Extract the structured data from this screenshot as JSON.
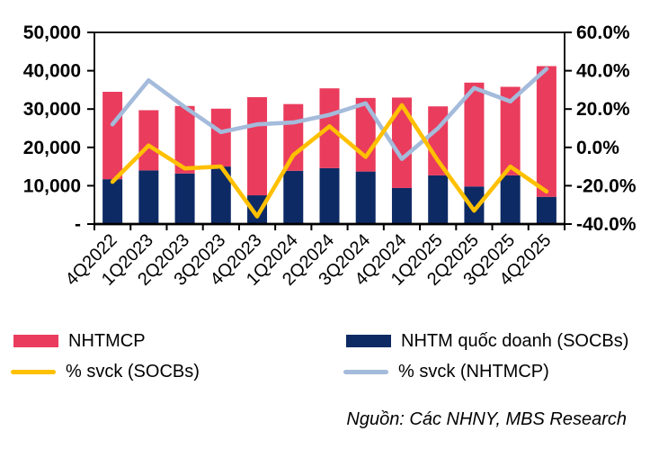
{
  "chart_data": {
    "type": "bar",
    "subtype": "stacked-bars-with-lines",
    "categories": [
      "4Q2022",
      "1Q2023",
      "2Q2023",
      "3Q2023",
      "4Q2023",
      "1Q2024",
      "2Q2024",
      "3Q2024",
      "4Q2024",
      "1Q2025",
      "2Q2025",
      "3Q2025",
      "4Q2025"
    ],
    "bar_series": [
      {
        "name": "NHTM quốc doanh (SOCBs)",
        "color": "#0D2A64",
        "axis": "left",
        "values": [
          11700,
          14000,
          13200,
          15000,
          7500,
          13900,
          14600,
          13700,
          9400,
          12700,
          9800,
          12700,
          7100
        ]
      },
      {
        "name": "NHTMCP",
        "color": "#EA3C5D",
        "axis": "left",
        "values": [
          22800,
          15700,
          17600,
          15100,
          25600,
          17400,
          20800,
          19200,
          23600,
          18000,
          27100,
          23100,
          34100
        ]
      }
    ],
    "bar_totals": [
      34500,
      29700,
      30800,
      30100,
      33100,
      31300,
      35400,
      32900,
      33000,
      30700,
      36900,
      35800,
      41200
    ],
    "line_series": [
      {
        "name": "% svck (SOCBs)",
        "color": "#FFC000",
        "axis": "right",
        "values": [
          -18,
          1,
          -11,
          -10,
          -36,
          -4,
          11,
          -5,
          22,
          -7,
          -33,
          -10,
          -23
        ]
      },
      {
        "name": "% svck (NHTMCP)",
        "color": "#A4BBDB",
        "axis": "right",
        "values": [
          12,
          35,
          21,
          8,
          12,
          13,
          17,
          23,
          -6,
          10,
          31,
          24,
          41
        ]
      }
    ],
    "left_axis": {
      "min": 0,
      "max": 50000,
      "ticks": [
        {
          "v": 0,
          "label": "-"
        },
        {
          "v": 10000,
          "label": "10,000"
        },
        {
          "v": 20000,
          "label": "20,000"
        },
        {
          "v": 30000,
          "label": "30,000"
        },
        {
          "v": 40000,
          "label": "40,000"
        },
        {
          "v": 50000,
          "label": "50,000"
        }
      ]
    },
    "right_axis": {
      "min": -40,
      "max": 60,
      "ticks": [
        {
          "v": -40,
          "label": "-40.0%"
        },
        {
          "v": -20,
          "label": "-20.0%"
        },
        {
          "v": 0,
          "label": "0.0%"
        },
        {
          "v": 20,
          "label": "20.0%"
        },
        {
          "v": 40,
          "label": "40.0%"
        },
        {
          "v": 60,
          "label": "60.0%"
        }
      ]
    },
    "grid": "off",
    "legend_position": "bottom",
    "axis_color": "#000000"
  },
  "legend": {
    "items": [
      {
        "label": "NHTMCP",
        "color": "#EA3C5D",
        "kind": "bar"
      },
      {
        "label": "NHTM quốc doanh (SOCBs)",
        "color": "#0D2A64",
        "kind": "bar"
      },
      {
        "label": "% svck (SOCBs)",
        "color": "#FFC000",
        "kind": "line"
      },
      {
        "label": "% svck (NHTMCP)",
        "color": "#A4BBDB",
        "kind": "line"
      }
    ]
  },
  "source": "Nguồn: Các NHNY, MBS Research"
}
